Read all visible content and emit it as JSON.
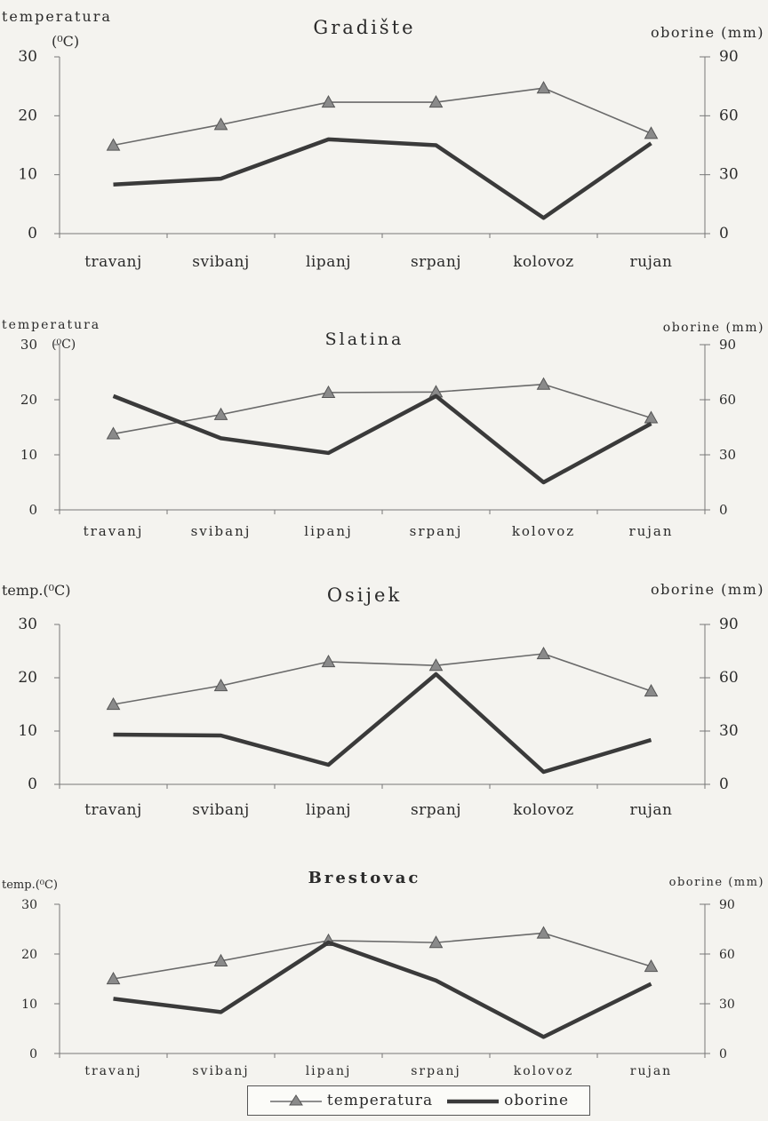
{
  "colors": {
    "temperature": "#6a6a6a",
    "precipitation": "#3a3a3a",
    "axis": "#777777"
  },
  "legend": {
    "temperature_label": "temperatura",
    "precipitation_label": "oborine"
  },
  "chart_data": [
    {
      "type": "line",
      "title": "Gradište",
      "left_label": "temperatura",
      "left_unit": "(⁰C)",
      "right_label": "oborine (mm)",
      "categories": [
        "travanj",
        "svibanj",
        "lipanj",
        "srpanj",
        "kolovoz",
        "rujan"
      ],
      "left_ticks": [
        "0",
        "10",
        "20",
        "30"
      ],
      "right_ticks": [
        "0",
        "30",
        "60",
        "90"
      ],
      "ylim_left": [
        0,
        30
      ],
      "ylim_right": [
        0,
        90
      ],
      "grid": false,
      "series": [
        {
          "name": "temperatura",
          "axis": "left",
          "values": [
            15,
            18.5,
            22.3,
            22.3,
            24.7,
            17
          ]
        },
        {
          "name": "oborine",
          "axis": "right",
          "values": [
            25,
            28,
            48,
            45,
            8,
            46
          ]
        }
      ]
    },
    {
      "type": "line",
      "title": "Slatina",
      "left_label": "temperatura",
      "left_unit": "(⁰C)",
      "right_label": "oborine (mm)",
      "categories": [
        "travanj",
        "svibanj",
        "lipanj",
        "srpanj",
        "kolovoz",
        "rujan"
      ],
      "left_ticks": [
        "0",
        "10",
        "20",
        "30"
      ],
      "right_ticks": [
        "0",
        "30",
        "60",
        "90"
      ],
      "ylim_left": [
        0,
        30
      ],
      "ylim_right": [
        0,
        90
      ],
      "grid": false,
      "series": [
        {
          "name": "temperatura",
          "axis": "left",
          "values": [
            13.8,
            17.3,
            21.3,
            21.4,
            22.8,
            16.7
          ]
        },
        {
          "name": "oborine",
          "axis": "right",
          "values": [
            62,
            39,
            31,
            62,
            15,
            47
          ]
        }
      ]
    },
    {
      "type": "line",
      "title": "Osijek",
      "left_label": "temp.(⁰C)",
      "left_unit": "",
      "right_label": "oborine (mm)",
      "categories": [
        "travanj",
        "svibanj",
        "lipanj",
        "srpanj",
        "kolovoz",
        "rujan"
      ],
      "left_ticks": [
        "0",
        "10",
        "20",
        "30"
      ],
      "right_ticks": [
        "0",
        "30",
        "60",
        "90"
      ],
      "ylim_left": [
        0,
        30
      ],
      "ylim_right": [
        0,
        90
      ],
      "grid": false,
      "series": [
        {
          "name": "temperatura",
          "axis": "left",
          "values": [
            15,
            18.5,
            23,
            22.3,
            24.5,
            17.5
          ]
        },
        {
          "name": "oborine",
          "axis": "right",
          "values": [
            28,
            27.5,
            11,
            62,
            7,
            25
          ]
        }
      ]
    },
    {
      "type": "line",
      "title": "Brestovac",
      "left_label": "temp.(⁰C)",
      "left_unit": "",
      "right_label": "oborine (mm)",
      "categories": [
        "travanj",
        "svibanj",
        "lipanj",
        "srpanj",
        "kolovoz",
        "rujan"
      ],
      "left_ticks": [
        "0",
        "10",
        "20",
        "30"
      ],
      "right_ticks": [
        "0",
        "30",
        "60",
        "90"
      ],
      "ylim_left": [
        0,
        30
      ],
      "ylim_right": [
        0,
        90
      ],
      "grid": false,
      "series": [
        {
          "name": "temperatura",
          "axis": "left",
          "values": [
            15,
            18.6,
            22.7,
            22.3,
            24.2,
            17.5
          ]
        },
        {
          "name": "oborine",
          "axis": "right",
          "values": [
            33,
            25,
            67,
            44,
            10,
            42
          ]
        }
      ]
    }
  ]
}
